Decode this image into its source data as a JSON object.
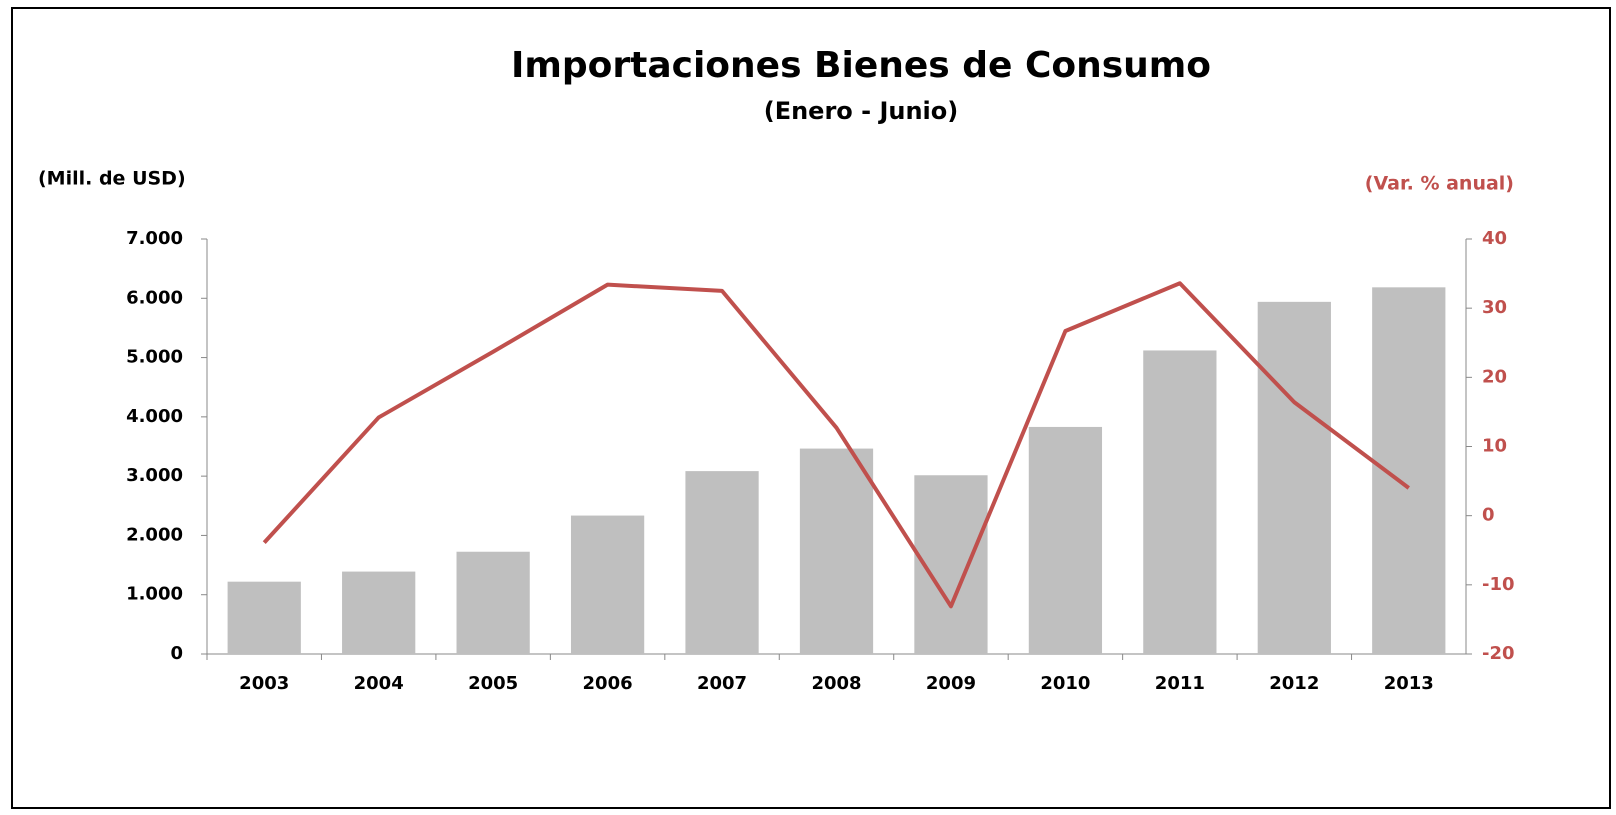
{
  "chart_data": {
    "type": "bar-line",
    "title": "Importaciones Bienes de Consumo",
    "subtitle": "(Enero - Junio)",
    "y_label": "(Mill. de USD)",
    "y2_label": "(Var. % anual)",
    "categories": [
      "2003",
      "2004",
      "2005",
      "2006",
      "2007",
      "2008",
      "2009",
      "2010",
      "2011",
      "2012",
      "2013"
    ],
    "series": [
      {
        "name": "Importaciones",
        "type": "bar",
        "color": "#bfbfbf",
        "values": [
          1220,
          1390,
          1725,
          2335,
          3085,
          3465,
          3015,
          3830,
          5120,
          5940,
          6185
        ]
      },
      {
        "name": "Var. % anual",
        "type": "line",
        "axis": "y2",
        "color": "#c0504d",
        "values": [
          -3.9,
          14.2,
          23.7,
          33.4,
          32.5,
          12.7,
          -13.1,
          26.7,
          33.6,
          16.4,
          4.0
        ]
      }
    ],
    "ylim": [
      0,
      7000
    ],
    "yticks": [
      0,
      {
        "value": 1000,
        "label": "1.000"
      },
      {
        "value": 2000,
        "label": "2.000"
      },
      {
        "value": 3000,
        "label": "3.000"
      },
      {
        "value": 4000,
        "label": "4.000"
      },
      {
        "value": 5000,
        "label": "5.000"
      },
      {
        "value": 6000,
        "label": "6.000"
      },
      {
        "value": 7000,
        "label": "7.000"
      }
    ],
    "y2lim": [
      -20,
      40
    ],
    "y2ticks": [
      -20,
      -10,
      0,
      10,
      20,
      30,
      40
    ],
    "y2_color": "#c0504d"
  }
}
